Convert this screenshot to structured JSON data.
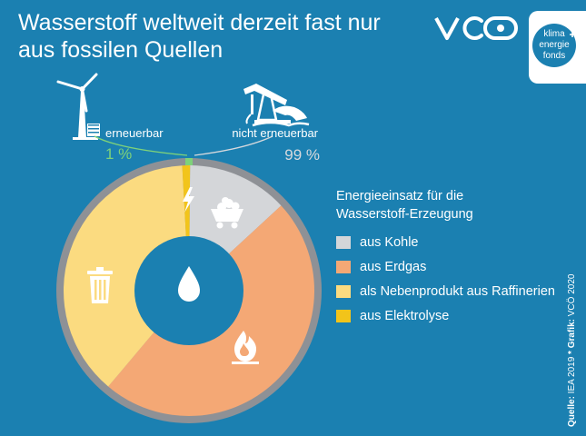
{
  "header": {
    "title_line1": "Wasserstoff weltweit derzeit fast nur",
    "title_line2": "aus fossilen Quellen"
  },
  "logo": {
    "text": "VCÖ",
    "badge_lines": [
      "klima",
      "energie",
      "fonds"
    ]
  },
  "colors": {
    "background": "#1b80b1",
    "kohle": "#d4d6d9",
    "erdgas": "#f4a875",
    "raffinerie": "#fbdb80",
    "elektrolyse": "#f2c41a",
    "ring": "#8e9196",
    "erneuerbar_green": "#7ed27a"
  },
  "icons": [
    "wind-turbine-icon",
    "oil-pump-icon",
    "coal-cart-icon",
    "flame-icon",
    "trash-can-icon",
    "lightning-icon",
    "water-drop-icon"
  ],
  "chart_data": {
    "type": "pie",
    "title": "Energieeinsatz für die Wasserstoff-Erzeugung",
    "categories": [
      "aus Kohle",
      "aus Erdgas",
      "als Nebenprodukt aus Raffinerien",
      "aus Elektrolyse"
    ],
    "values": [
      13,
      48,
      38,
      1
    ],
    "unit": "%",
    "outer_labels": {
      "erneuerbar": {
        "label": "erneuerbar",
        "value": "1 %"
      },
      "nicht_erneuerbar": {
        "label": "nicht erneuerbar",
        "value": "99 %"
      }
    },
    "legend_placement": "right"
  },
  "legend": {
    "title_line1": "Energieeinsatz für die",
    "title_line2": "Wasserstoff-Erzeugung",
    "items": [
      {
        "label": "aus Kohle",
        "color": "#d4d6d9"
      },
      {
        "label": "aus Erdgas",
        "color": "#f4a875"
      },
      {
        "label": "als Nebenprodukt aus Raffinerien",
        "color": "#fbdb80"
      },
      {
        "label": "aus Elektrolyse",
        "color": "#f2c41a"
      }
    ]
  },
  "source": {
    "label": "Quelle:",
    "source_text": "IEA 2019",
    "sep": "*",
    "graphic_label": "Grafik:",
    "graphic_text": "VCÖ 2020"
  }
}
